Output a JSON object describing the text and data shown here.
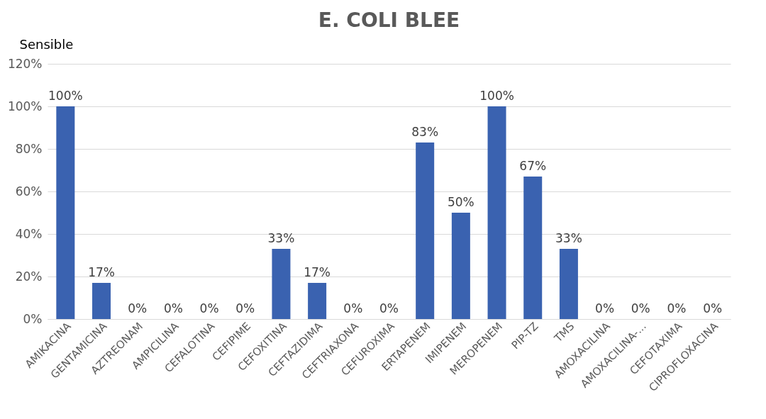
{
  "chart_data": {
    "type": "bar",
    "title": "E. COLI BLEE",
    "ylabel": "Sensible",
    "categories": [
      "AMIKACINA",
      "GENTAMICINA",
      "AZTREONAM",
      "AMPICILINA",
      "CEFALOTINA",
      "CEFIPIME",
      "CEFOXITINA",
      "CEFTAZIDIMA",
      "CEFTRIAXONA",
      "CEFUROXIMA",
      "ERTAPENEM",
      "IMIPENEM",
      "MEROPENEM",
      "PIP-TZ",
      "TMS",
      "AMOXACILINA",
      "AMOXACILINA-...",
      "CEFOTAXIMA",
      "CIPROFLOXACINA"
    ],
    "values": [
      100,
      17,
      0,
      0,
      0,
      0,
      33,
      17,
      0,
      0,
      83,
      50,
      100,
      67,
      33,
      0,
      0,
      0,
      0
    ],
    "value_labels": [
      "100%",
      "17%",
      "0%",
      "0%",
      "0%",
      "0%",
      "33%",
      "17%",
      "0%",
      "0%",
      "83%",
      "50%",
      "100%",
      "67%",
      "33%",
      "0%",
      "0%",
      "0%",
      "0%"
    ],
    "color": "#3a62b0",
    "ylim": [
      0,
      120
    ],
    "yticks": [
      {
        "value": 0,
        "label": "0%"
      },
      {
        "value": 20,
        "label": "20%"
      },
      {
        "value": 40,
        "label": "40%"
      },
      {
        "value": 60,
        "label": "60%"
      },
      {
        "value": 80,
        "label": "80%"
      },
      {
        "value": 100,
        "label": "100%"
      },
      {
        "value": 120,
        "label": "120%"
      }
    ],
    "grid": "y"
  }
}
